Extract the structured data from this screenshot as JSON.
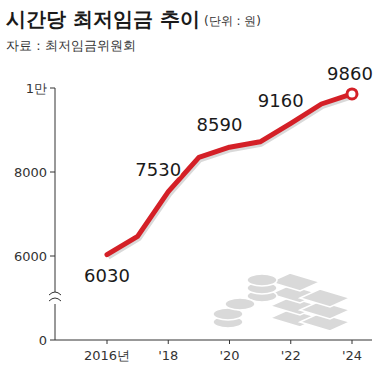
{
  "chart_data": {
    "type": "line",
    "title": "시간당 최저임금 추이",
    "subtitle": "(단위 : 원)",
    "source": "자료 : 최저임금위원회",
    "categories": [
      "2016년",
      null,
      "'18",
      null,
      "'20",
      null,
      "'22",
      null,
      "'24"
    ],
    "values": [
      6030,
      6470,
      7530,
      8350,
      8590,
      8720,
      9160,
      9620,
      9860
    ],
    "value_labels": [
      "6030",
      null,
      "7530",
      null,
      "8590",
      null,
      "9160",
      null,
      "9860"
    ],
    "color": "#d42027",
    "ylim": [
      0,
      10000
    ],
    "yticks": [
      0,
      6000,
      8000,
      {
        "value": 10000,
        "label": "1만"
      }
    ],
    "grid": false,
    "data_labels": true
  }
}
